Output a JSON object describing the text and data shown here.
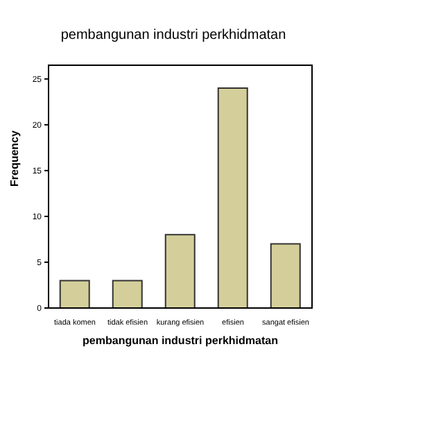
{
  "chart_data": {
    "type": "bar",
    "title": "pembangunan industri perkhidmatan",
    "xlabel": "pembangunan industri perkhidmatan",
    "ylabel": "Frequency",
    "categories": [
      "tiada komen",
      "tidak efisien",
      "kurang efisien",
      "efisien",
      "sangat efisien"
    ],
    "values": [
      3,
      3,
      8,
      24,
      7
    ],
    "color": "#d4cf9a",
    "ylim": [
      0,
      26.5
    ],
    "yticks": [
      0,
      5,
      10,
      15,
      20,
      25
    ],
    "grid": false,
    "legend": false
  }
}
